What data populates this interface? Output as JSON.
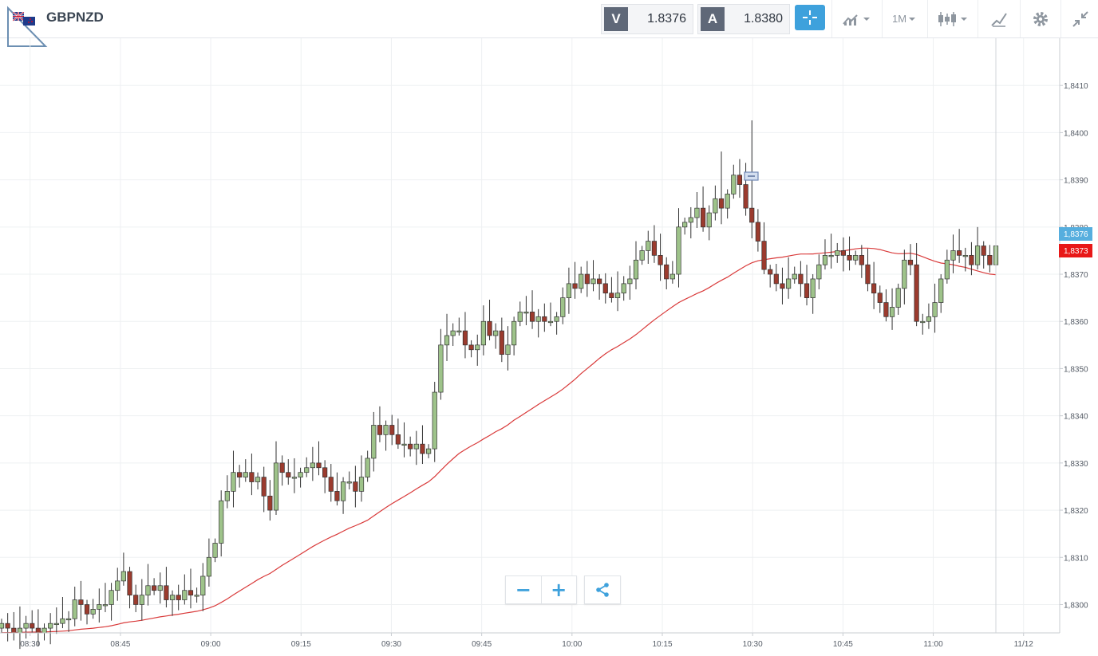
{
  "toolbar": {
    "symbol": "GBPNZD",
    "sell_label": "V",
    "sell_value": "1.8376",
    "buy_label": "A",
    "buy_value": "1.8380",
    "timeframe": "1M",
    "icons": [
      "flag-gb-nz-icon",
      "crosshair-icon",
      "chart-type-icon",
      "candlestick-icon",
      "drawing-tools-icon",
      "gear-icon",
      "collapse-icon"
    ]
  },
  "controls": {
    "zoom_out": "−",
    "zoom_in": "+",
    "share_icon": "share-icon"
  },
  "chart_data": {
    "type": "candlestick",
    "instrument": "GBPNZD",
    "xlabel": "",
    "ylabel": "",
    "ylim": [
      1.8294,
      1.842
    ],
    "y_ticks": [
      "1,8300",
      "1,8310",
      "1,8320",
      "1,8330",
      "1,8340",
      "1,8350",
      "1,8360",
      "1,8370",
      "1,8380",
      "1,8390",
      "1,8400",
      "1,8410"
    ],
    "x_ticks": [
      "08:30",
      "08:45",
      "09:00",
      "09:15",
      "09:30",
      "09:45",
      "10:00",
      "10:15",
      "10:30",
      "10:45",
      "11:00",
      "11/12"
    ],
    "x_tick_minutes": [
      30,
      45,
      60,
      75,
      90,
      105,
      120,
      135,
      150,
      165,
      180,
      195
    ],
    "x_range_minutes": [
      25,
      201
    ],
    "grid": true,
    "last_price_tag": "1,8376",
    "ma_price_tag": "1,8373",
    "colors": {
      "up": "#9ec38a",
      "down": "#9b3b2e",
      "wick": "#333333",
      "ma": "#d93a3a",
      "last_tag": "#56aede",
      "ma_tag": "#e81818"
    },
    "candle_closes": [
      1.8296,
      1.8295,
      1.8294,
      1.8295,
      1.8296,
      1.8295,
      1.8294,
      1.8295,
      1.8296,
      1.8296,
      1.8297,
      1.8297,
      1.8301,
      1.83,
      1.8298,
      1.8299,
      1.83,
      1.83,
      1.8303,
      1.8305,
      1.8307,
      1.8302,
      1.83,
      1.8302,
      1.8304,
      1.8303,
      1.8304,
      1.8301,
      1.8302,
      1.8301,
      1.8303,
      1.8302,
      1.8302,
      1.8306,
      1.831,
      1.8313,
      1.8322,
      1.8324,
      1.8328,
      1.8327,
      1.8328,
      1.8326,
      1.8327,
      1.8323,
      1.832,
      1.833,
      1.8328,
      1.8327,
      1.8327,
      1.8328,
      1.8329,
      1.833,
      1.8329,
      1.8327,
      1.8324,
      1.8322,
      1.8326,
      1.8326,
      1.8324,
      1.8327,
      1.8331,
      1.8338,
      1.8336,
      1.8338,
      1.8336,
      1.8334,
      1.8334,
      1.8333,
      1.8334,
      1.8332,
      1.8333,
      1.8345,
      1.8355,
      1.8357,
      1.8358,
      1.8358,
      1.8355,
      1.8354,
      1.8355,
      1.836,
      1.8357,
      1.8358,
      1.8353,
      1.8355,
      1.836,
      1.8362,
      1.8362,
      1.836,
      1.8361,
      1.836,
      1.836,
      1.8361,
      1.8365,
      1.8368,
      1.8367,
      1.837,
      1.8368,
      1.8369,
      1.8368,
      1.8366,
      1.8365,
      1.8366,
      1.8368,
      1.8369,
      1.8373,
      1.8375,
      1.8377,
      1.8374,
      1.8372,
      1.8369,
      1.837,
      1.838,
      1.8381,
      1.8382,
      1.8384,
      1.838,
      1.8383,
      1.8386,
      1.8384,
      1.8387,
      1.8391,
      1.8389,
      1.8384,
      1.8381,
      1.8377,
      1.8371,
      1.837,
      1.8368,
      1.8367,
      1.8369,
      1.837,
      1.8368,
      1.8365,
      1.8369,
      1.8372,
      1.8374,
      1.8374,
      1.8375,
      1.8374,
      1.8373,
      1.8374,
      1.8372,
      1.8368,
      1.8366,
      1.8364,
      1.8361,
      1.8363,
      1.8367,
      1.8373,
      1.8372,
      1.836,
      1.836,
      1.8361,
      1.8364,
      1.8369,
      1.8373,
      1.8375,
      1.8374,
      1.8374,
      1.8372,
      1.8376,
      1.8374,
      1.8372,
      1.8376
    ]
  }
}
